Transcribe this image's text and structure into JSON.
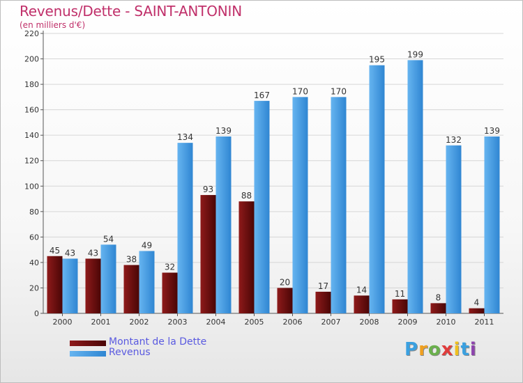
{
  "title": "Revenus/Dette - SAINT-ANTONIN",
  "subtitle": "(en milliers d'€)",
  "chart_data": {
    "type": "bar",
    "categories": [
      "2000",
      "2001",
      "2002",
      "2003",
      "2004",
      "2005",
      "2006",
      "2007",
      "2008",
      "2009",
      "2010",
      "2011"
    ],
    "series": [
      {
        "name": "Montant de la Dette",
        "values": [
          45,
          43,
          38,
          32,
          93,
          88,
          20,
          17,
          14,
          11,
          8,
          4
        ],
        "color": "#7a0e0e"
      },
      {
        "name": "Revenus",
        "values": [
          43,
          54,
          49,
          134,
          139,
          167,
          170,
          170,
          195,
          199,
          132,
          139
        ],
        "color": "#4aa0e6"
      }
    ],
    "ylim": [
      0,
      220
    ],
    "yticks": [
      0,
      20,
      40,
      60,
      80,
      100,
      120,
      140,
      160,
      180,
      200,
      220
    ],
    "grid": true,
    "legend_position": "bottom-left"
  },
  "logo": {
    "letters": [
      "P",
      "r",
      "o",
      "x",
      "i",
      "t",
      "i"
    ],
    "colors": [
      "#3aa0e0",
      "#f0a020",
      "#6ab04c",
      "#e03c3c",
      "#f0c020",
      "#3aa0e0",
      "#8e44ad"
    ]
  }
}
